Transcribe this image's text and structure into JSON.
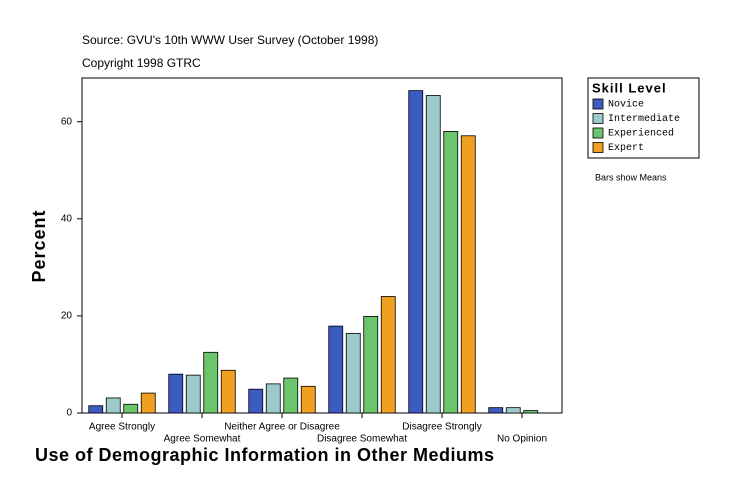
{
  "chart_data": {
    "type": "bar",
    "source": "Source: GVU's 10th WWW User Survey (October 1998)",
    "copyright": "Copyright 1998 GTRC",
    "ylabel": "Percent",
    "xlabel": "Use of Demographic Information in Other Mediums",
    "legend_title": "Skill Level",
    "note": "Bars show Means",
    "categories": [
      "Agree Strongly",
      "Agree Somewhat",
      "Neither Agree or Disagree",
      "Disagree Somewhat",
      "Disagree Strongly",
      "No Opinion"
    ],
    "series": [
      {
        "name": "Novice",
        "color": "#3a5cc0",
        "values": [
          1.5,
          8.0,
          4.9,
          17.9,
          66.4,
          1.1
        ]
      },
      {
        "name": "Intermediate",
        "color": "#9ccaca",
        "values": [
          3.1,
          7.8,
          6.0,
          16.4,
          65.4,
          1.1
        ]
      },
      {
        "name": "Experienced",
        "color": "#6cc46c",
        "values": [
          1.8,
          12.5,
          7.2,
          19.9,
          58.0,
          0.5
        ]
      },
      {
        "name": "Expert",
        "color": "#f0a020",
        "values": [
          4.1,
          8.8,
          5.5,
          24.0,
          57.1,
          0
        ]
      }
    ],
    "ylim": [
      0,
      69
    ],
    "yticks": [
      0,
      20,
      40,
      60
    ],
    "legend": "right"
  }
}
